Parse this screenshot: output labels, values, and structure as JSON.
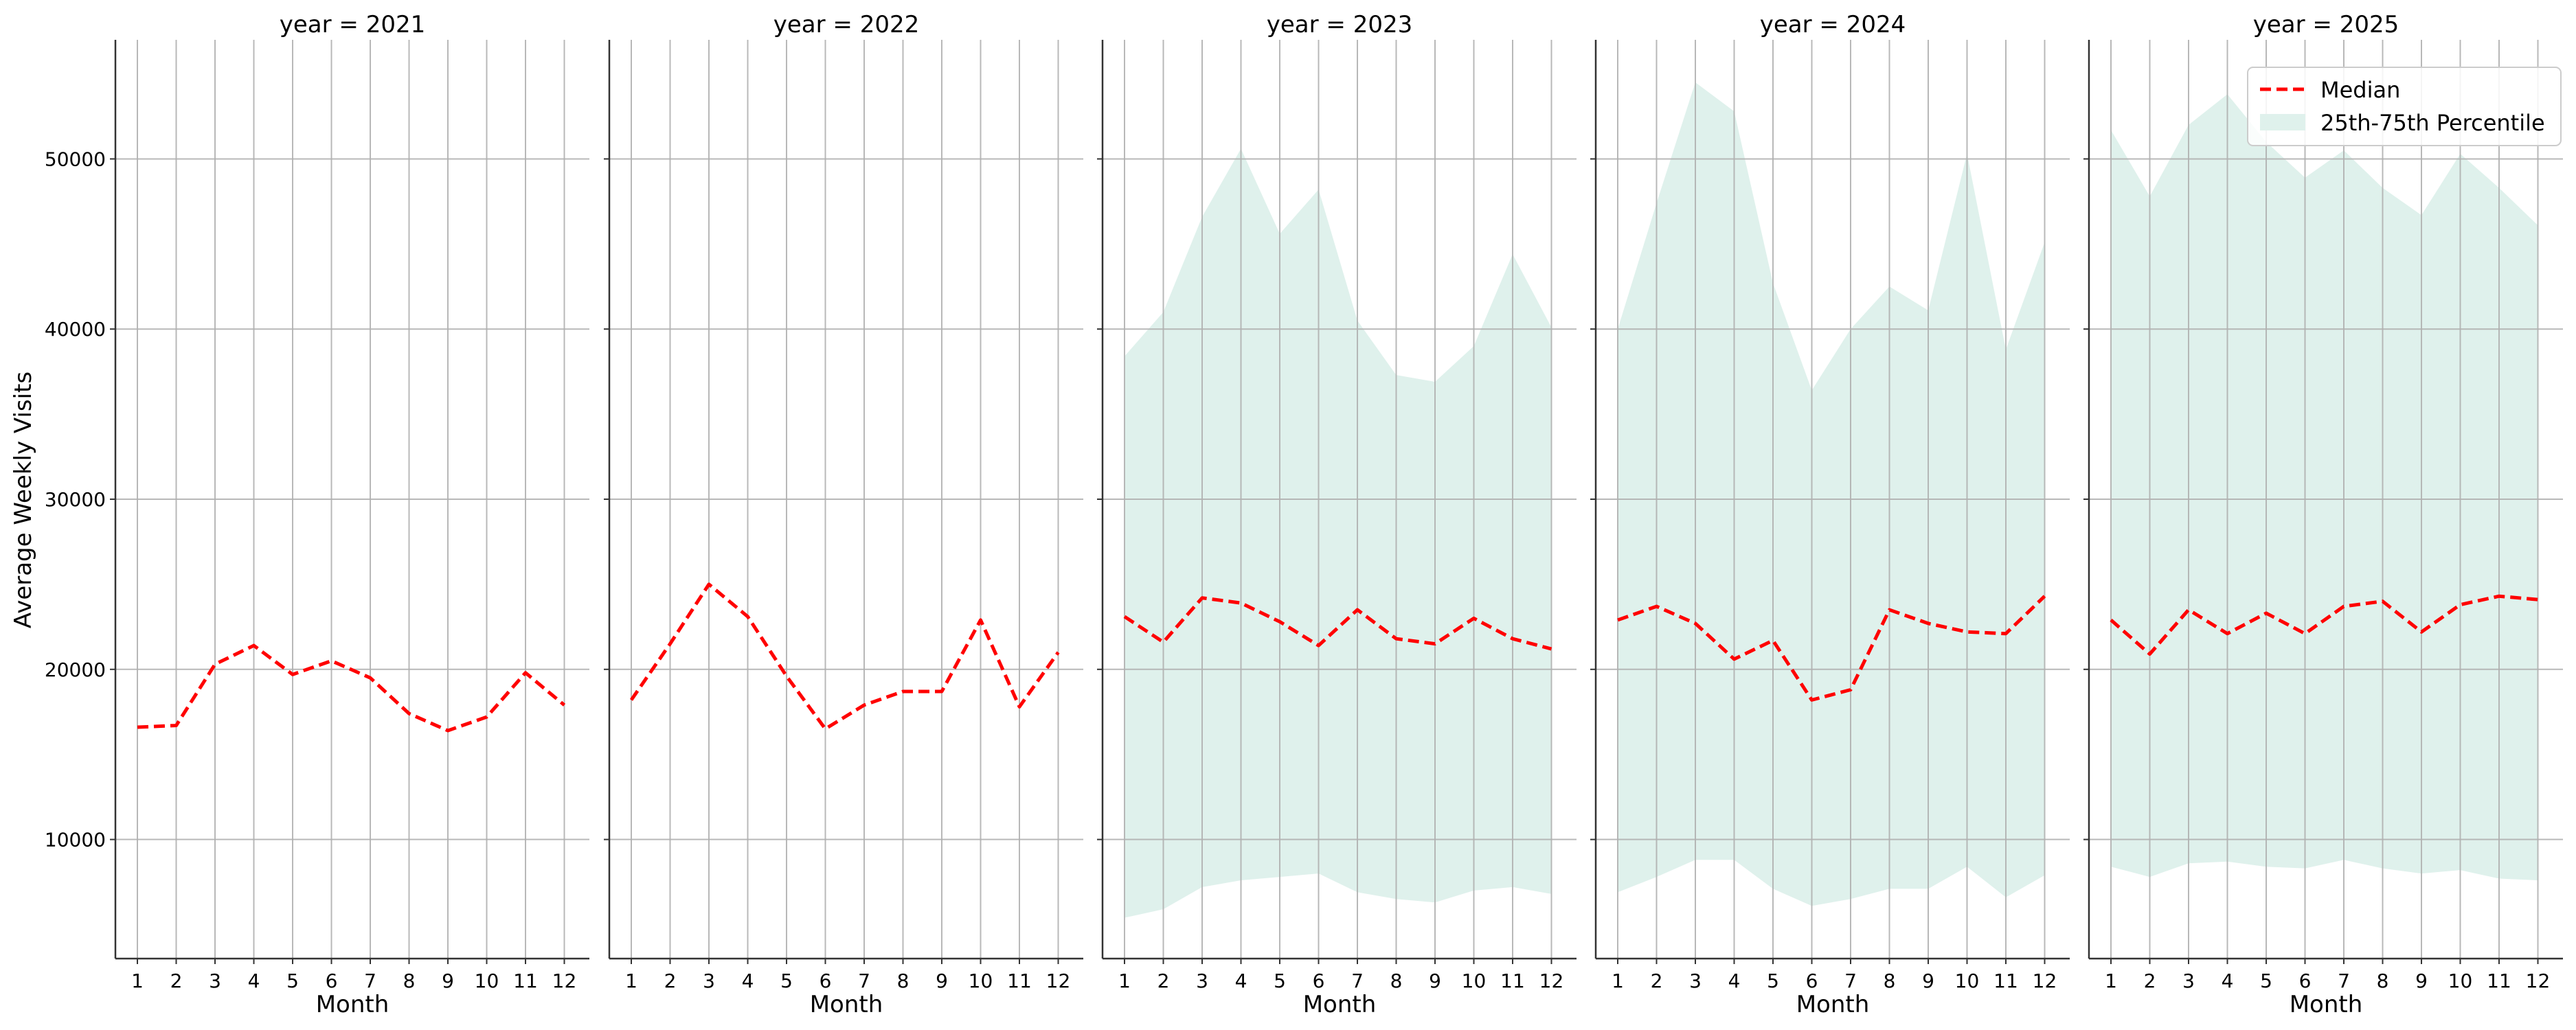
{
  "chart_data": {
    "type": "line",
    "ylabel": "Average Weekly Visits",
    "xlabel": "Month",
    "x": [
      1,
      2,
      3,
      4,
      5,
      6,
      7,
      8,
      9,
      10,
      11,
      12
    ],
    "ylim": [
      3000,
      57000
    ],
    "yticks": [
      10000,
      20000,
      30000,
      40000,
      50000
    ],
    "grid": true,
    "legend_position": "top-right",
    "legend": [
      {
        "name": "Median",
        "style": "dashed-line",
        "color": "#ff0000"
      },
      {
        "name": "25th-75th Percentile",
        "style": "band",
        "color": "#dff1ec"
      }
    ],
    "colors": {
      "median": "#ff0000",
      "band": "#dff1ec",
      "grid": "#b0b0b0",
      "axis": "#333333"
    },
    "panels": [
      {
        "title": "year = 2021",
        "median": [
          16600,
          16700,
          20300,
          21400,
          19700,
          20500,
          19500,
          17400,
          16400,
          17200,
          19800,
          17900
        ],
        "p25": null,
        "p75": null
      },
      {
        "title": "year = 2022",
        "median": [
          18200,
          21500,
          25000,
          23100,
          19600,
          16500,
          17900,
          18700,
          18700,
          22900,
          17800,
          21000
        ],
        "p25": null,
        "p75": null
      },
      {
        "title": "year = 2023",
        "median": [
          23100,
          21600,
          24200,
          23900,
          22800,
          21400,
          23500,
          21800,
          21500,
          23000,
          21800,
          21200
        ],
        "p25": [
          5400,
          5900,
          7200,
          7600,
          7800,
          8000,
          6900,
          6500,
          6300,
          7000,
          7200,
          6800
        ],
        "p75": [
          38400,
          41000,
          46600,
          50600,
          45600,
          48200,
          40500,
          37300,
          36900,
          39000,
          44400,
          40100
        ]
      },
      {
        "title": "year = 2024",
        "median": [
          22900,
          23700,
          22700,
          20600,
          21700,
          18200,
          18800,
          23500,
          22700,
          22200,
          22100,
          24300
        ],
        "p25": [
          6900,
          7800,
          8800,
          8800,
          7100,
          6100,
          6500,
          7100,
          7100,
          8400,
          6600,
          7900
        ],
        "p75": [
          40000,
          47400,
          54500,
          52800,
          42700,
          36400,
          40000,
          42500,
          41100,
          50300,
          38800,
          45100
        ]
      },
      {
        "title": "year = 2025",
        "median": [
          22900,
          20900,
          23500,
          22100,
          23300,
          22100,
          23700,
          24000,
          22200,
          23800,
          24300,
          24100
        ],
        "p25": [
          8400,
          7800,
          8600,
          8700,
          8400,
          8300,
          8800,
          8300,
          8000,
          8200,
          7700,
          7600
        ],
        "p75": [
          51700,
          47800,
          52000,
          53800,
          51000,
          48900,
          50500,
          48300,
          46700,
          50300,
          48300,
          46100
        ]
      }
    ]
  }
}
